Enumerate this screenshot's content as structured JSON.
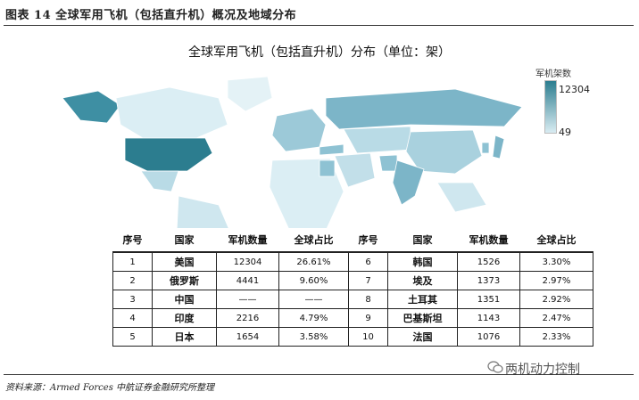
{
  "caption": "图表 14 全球军用飞机（包括直升机）概况及地域分布",
  "source": "资料来源：Armed Forces 中航证券金融研究所整理",
  "watermark": "两机动力控制",
  "chart_data": {
    "type": "table",
    "title": "全球军用飞机（包括直升机）分布（单位：架）",
    "legend": {
      "title": "军机架数",
      "max": "12304",
      "min": "49",
      "colors": [
        "#2c7d8f",
        "#d9ecf2"
      ]
    },
    "columns": [
      "序号",
      "国家",
      "军机数量",
      "全球占比",
      "序号",
      "国家",
      "军机数量",
      "全球占比"
    ],
    "rows": [
      [
        "1",
        "美国",
        "12304",
        "26.61%",
        "6",
        "韩国",
        "1526",
        "3.30%"
      ],
      [
        "2",
        "俄罗斯",
        "4441",
        "9.60%",
        "7",
        "埃及",
        "1373",
        "2.97%"
      ],
      [
        "3",
        "中国",
        "——",
        "——",
        "8",
        "土耳其",
        "1351",
        "2.92%"
      ],
      [
        "4",
        "印度",
        "2216",
        "4.79%",
        "9",
        "巴基斯坦",
        "1143",
        "2.47%"
      ],
      [
        "5",
        "日本",
        "1654",
        "3.58%",
        "10",
        "法国",
        "1076",
        "2.33%"
      ]
    ]
  }
}
